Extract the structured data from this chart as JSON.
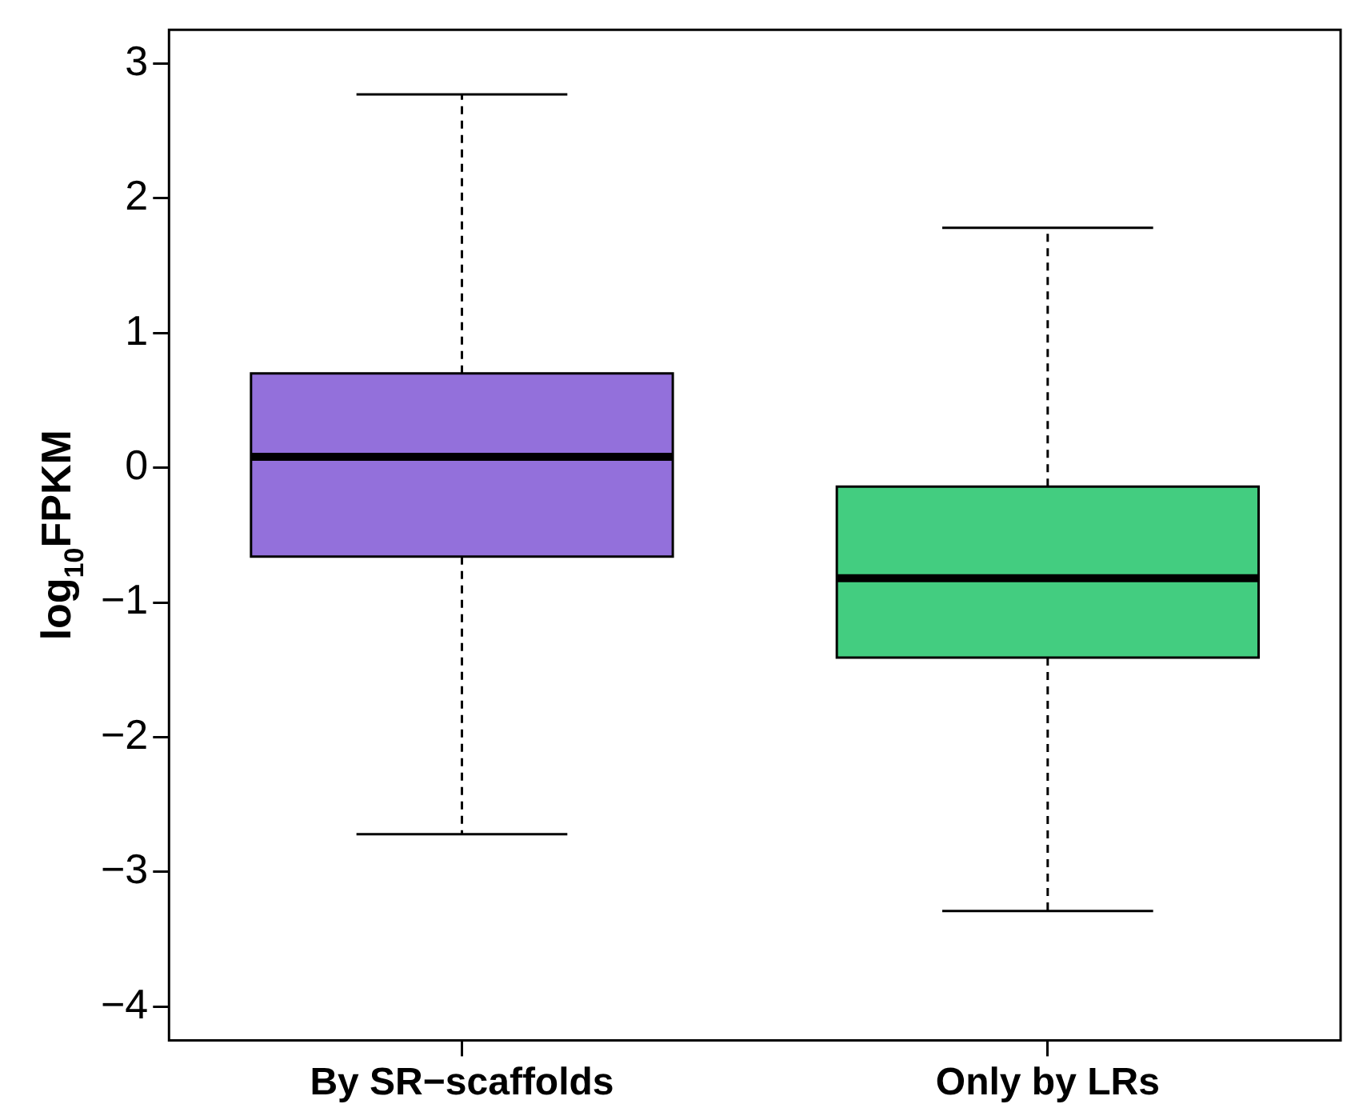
{
  "chart_data": {
    "type": "box",
    "ylabel": "log$_{10}$FPKM",
    "categories": [
      "By SR−scaffolds",
      "Only by LRs"
    ],
    "colors": [
      "#9370db",
      "#43cd80"
    ],
    "boxes": [
      {
        "low": -2.72,
        "q1": -0.66,
        "median": 0.08,
        "q3": 0.7,
        "high": 2.77
      },
      {
        "low": -3.29,
        "q1": -1.41,
        "median": -0.82,
        "q3": -0.14,
        "high": 1.78
      }
    ],
    "ylim": [
      -4.25,
      3.25
    ],
    "yticks": [
      -4,
      -3,
      -2,
      -1,
      0,
      1,
      2,
      3
    ],
    "grid": false,
    "legend": false
  }
}
